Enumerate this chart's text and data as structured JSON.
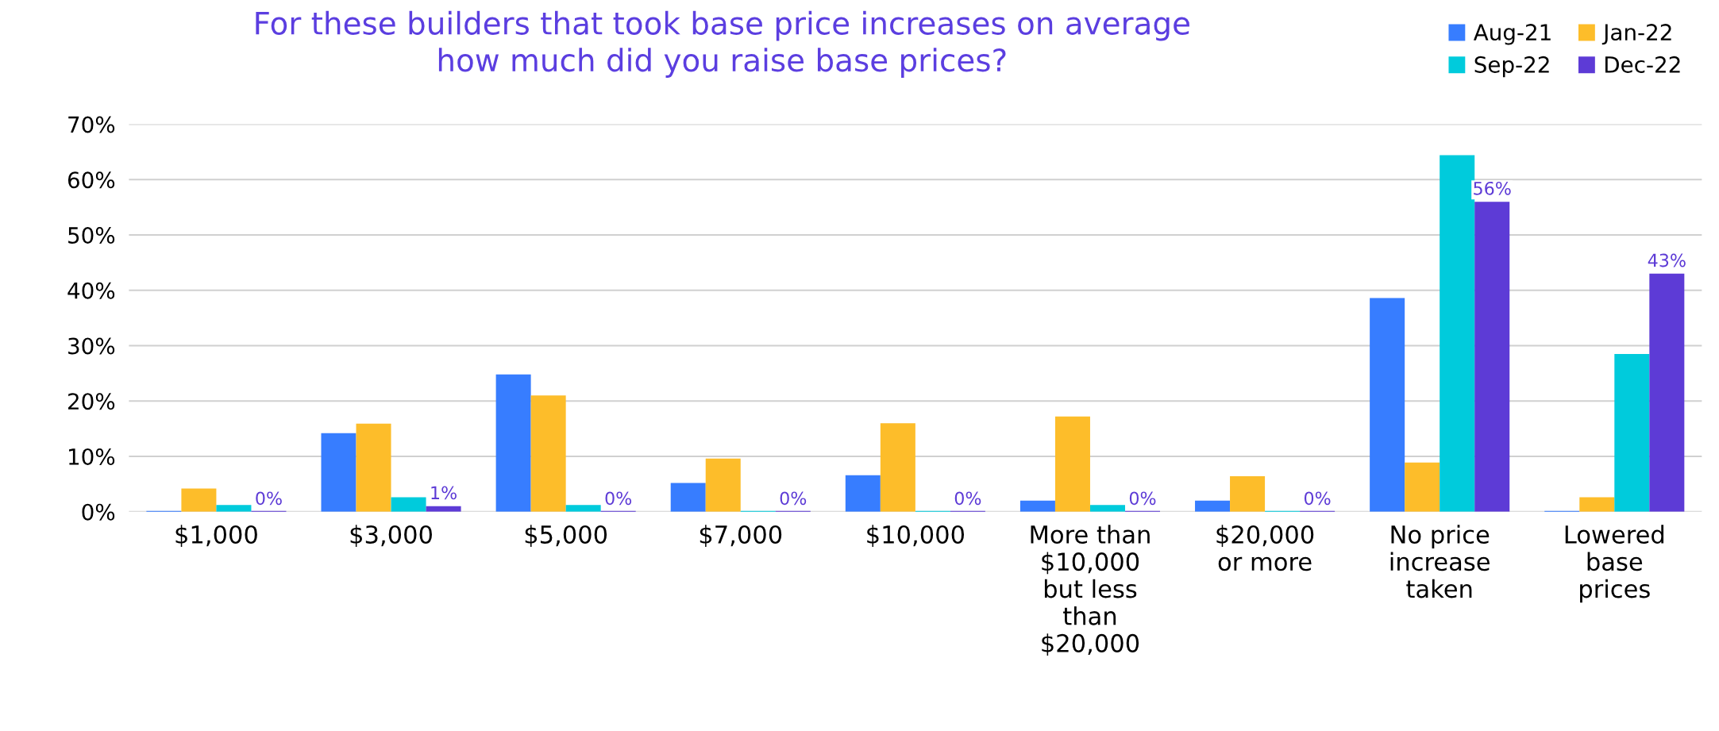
{
  "chart_data": {
    "type": "bar",
    "title": "For these builders that took base price increases on average\nhow much did you raise base prices?",
    "categories": [
      "$1,000",
      "$3,000",
      "$5,000",
      "$7,000",
      "$10,000",
      "More than\n$10,000\nbut less\nthan\n$20,000",
      "$20,000\nor more",
      "No price\nincrease\ntaken",
      "Lowered\nbase\nprices"
    ],
    "series": [
      {
        "name": "Aug-21",
        "color": "#377dff",
        "values": [
          0,
          14.2,
          24.8,
          5.2,
          6.6,
          2,
          2,
          38.6,
          0
        ]
      },
      {
        "name": "Jan-22",
        "color": "#fdbd2a",
        "values": [
          4.2,
          15.9,
          21,
          9.6,
          16,
          17.2,
          6.4,
          8.9,
          2.6
        ]
      },
      {
        "name": "Sep-22",
        "color": "#00cbdc",
        "values": [
          1.2,
          2.6,
          1.2,
          0,
          0,
          1.2,
          0,
          64.4,
          28.5
        ]
      },
      {
        "name": "Dec-22",
        "color": "#5d3bd6",
        "values": [
          0,
          1,
          0,
          0,
          0,
          0,
          0,
          56,
          43
        ],
        "value_labels": [
          "0%",
          "1%",
          "0%",
          "0%",
          "0%",
          "0%",
          "0%",
          "56%",
          "43%"
        ]
      }
    ],
    "ylim": [
      0,
      70
    ],
    "yticks": [
      {
        "value": 0,
        "label": "0%"
      },
      {
        "value": 10,
        "label": "10%"
      },
      {
        "value": 20,
        "label": "20%"
      },
      {
        "value": 30,
        "label": "30%"
      },
      {
        "value": 40,
        "label": "40%"
      },
      {
        "value": 50,
        "label": "50%"
      },
      {
        "value": 60,
        "label": "60%"
      },
      {
        "value": 70,
        "label": "70%"
      }
    ],
    "grid": "y",
    "legend": "top right"
  }
}
